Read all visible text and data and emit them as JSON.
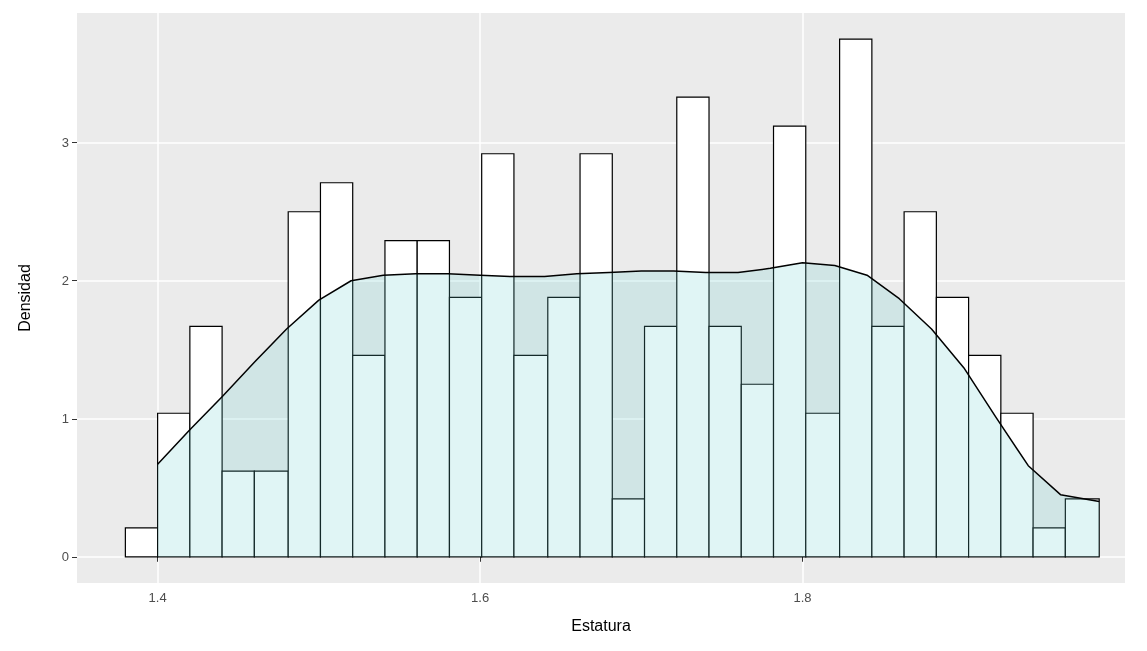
{
  "chart_data": {
    "type": "histogram",
    "xlabel": "Estatura",
    "ylabel": "Densidad",
    "bins": [
      1.38,
      1.4,
      1.42,
      1.44,
      1.46,
      1.481,
      1.501,
      1.521,
      1.541,
      1.561,
      1.581,
      1.601,
      1.621,
      1.642,
      1.662,
      1.682,
      1.702,
      1.722,
      1.742,
      1.762,
      1.782,
      1.802,
      1.823,
      1.843,
      1.863,
      1.883,
      1.903,
      1.923,
      1.943,
      1.963,
      1.984
    ],
    "values": [
      0.21,
      1.04,
      1.67,
      0.62,
      0.62,
      2.5,
      2.71,
      1.46,
      2.29,
      2.29,
      1.88,
      2.92,
      1.46,
      1.88,
      2.92,
      0.42,
      1.67,
      3.33,
      1.67,
      1.25,
      3.12,
      1.04,
      3.75,
      1.67,
      2.5,
      1.88,
      1.46,
      1.04,
      0.21,
      0.42
    ],
    "color": "#ffffff",
    "series": [
      {
        "type": "area",
        "color": "#64cdcd",
        "x": [
          1.4,
          1.42,
          1.44,
          1.46,
          1.48,
          1.5,
          1.52,
          1.54,
          1.56,
          1.58,
          1.6,
          1.62,
          1.64,
          1.66,
          1.68,
          1.7,
          1.72,
          1.74,
          1.76,
          1.78,
          1.8,
          1.82,
          1.84,
          1.86,
          1.88,
          1.9,
          1.92,
          1.94,
          1.96,
          1.984
        ],
        "values": [
          0.67,
          0.92,
          1.16,
          1.41,
          1.65,
          1.86,
          2.0,
          2.04,
          2.05,
          2.05,
          2.04,
          2.03,
          2.03,
          2.05,
          2.06,
          2.07,
          2.07,
          2.06,
          2.06,
          2.09,
          2.13,
          2.11,
          2.04,
          1.87,
          1.65,
          1.37,
          1.01,
          0.66,
          0.45,
          0.4
        ]
      }
    ],
    "xlim": [
      1.35,
      2.0
    ],
    "xticks": [
      1.4,
      1.6,
      1.8
    ],
    "ylim": [
      -0.19,
      3.94
    ],
    "yticks": [
      0,
      1,
      2,
      3
    ],
    "grid": true
  }
}
